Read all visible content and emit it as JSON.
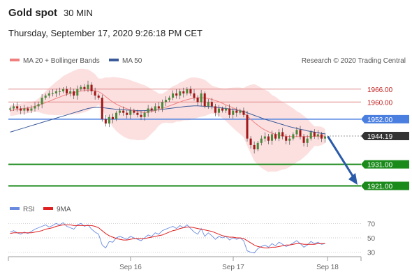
{
  "header": {
    "title": "Gold spot",
    "timeframe": "30 MIN",
    "datetime": "Thursday, September 17, 2020 9:26:18 PM CET",
    "copyright": "Research © 2020 Trading Central"
  },
  "legend": {
    "ma20": "MA 20 + Bollinger Bands",
    "ma50": "MA 50",
    "rsi": "RSI",
    "rsi_ma": "9MA"
  },
  "colors": {
    "band_fill": "#fcdada",
    "ma20": "#f08080",
    "ma50": "#3a5a9a",
    "candle_up": "#4a8a3a",
    "candle_down": "#a01818",
    "resistance": "#e08888",
    "pivot": "#4a7fe0",
    "support": "#1a8a1a",
    "arrow": "#2a5aa8",
    "rsi": "#6a8ae0",
    "rsi_ma": "#e02020"
  },
  "chart_data": [
    {
      "type": "line",
      "title": "Gold spot",
      "x_ticks": [
        "Sep 16",
        "Sep 17",
        "Sep 18"
      ],
      "ylim": [
        1915,
        1975
      ],
      "levels": [
        {
          "label": "1966.00",
          "value": 1966.0,
          "kind": "resistance"
        },
        {
          "label": "1960.00",
          "value": 1960.0,
          "kind": "resistance"
        },
        {
          "label": "1952.00",
          "value": 1952.0,
          "kind": "pivot"
        },
        {
          "label": "1944.19",
          "value": 1944.19,
          "kind": "last"
        },
        {
          "label": "1931.00",
          "value": 1931.0,
          "kind": "support"
        },
        {
          "label": "1921.00",
          "value": 1921.0,
          "kind": "support"
        }
      ],
      "series": [
        {
          "name": "Gold spot",
          "values": [
            1957,
            1958,
            1957,
            1956,
            1957,
            1956,
            1957,
            1958,
            1959,
            1962,
            1963,
            1964,
            1964,
            1965,
            1965,
            1966,
            1964,
            1965,
            1963,
            1966,
            1967,
            1966,
            1968,
            1965,
            1963,
            1962,
            1952,
            1950,
            1953,
            1952,
            1955,
            1956,
            1955,
            1954,
            1956,
            1955,
            1954,
            1953,
            1955,
            1957,
            1956,
            1958,
            1957,
            1960,
            1961,
            1962,
            1964,
            1963,
            1965,
            1964,
            1966,
            1964,
            1962,
            1960,
            1964,
            1958,
            1960,
            1958,
            1955,
            1957,
            1956,
            1957,
            1954,
            1956,
            1955,
            1956,
            1954,
            1943,
            1940,
            1938,
            1941,
            1943,
            1944,
            1942,
            1945,
            1943,
            1946,
            1944,
            1942,
            1943,
            1945,
            1947,
            1944,
            1941,
            1943,
            1946,
            1944,
            1945,
            1943,
            1944
          ]
        },
        {
          "name": "MA 50",
          "values": [
            1946,
            1946.5,
            1947,
            1947.5,
            1948,
            1948.5,
            1949,
            1949.5,
            1950,
            1950.5,
            1951,
            1951.5,
            1952,
            1952.5,
            1953,
            1953.5,
            1954,
            1954.5,
            1955,
            1955.5,
            1956,
            1956.5,
            1957,
            1957.3,
            1957.5,
            1957.6,
            1957.4,
            1957.2,
            1957,
            1956.8,
            1956.6,
            1956.5,
            1956.4,
            1956.3,
            1956.2,
            1956.1,
            1956,
            1956,
            1956,
            1956.1,
            1956.2,
            1956.3,
            1956.5,
            1956.6,
            1956.8,
            1957,
            1957.2,
            1957.4,
            1957.6,
            1957.8,
            1958,
            1958.1,
            1958.2,
            1958.2,
            1958.1,
            1958,
            1957.9,
            1957.8,
            1957.6,
            1957.4,
            1957.2,
            1957,
            1956.8,
            1956.6,
            1956.3,
            1956,
            1955.6,
            1955,
            1954.4,
            1953.8,
            1953.2,
            1952.6,
            1952,
            1951.5,
            1951,
            1950.5,
            1950,
            1949.5,
            1949,
            1948.5,
            1948.1,
            1947.7,
            1947.3,
            1947,
            1946.6,
            1946.3,
            1946,
            1945.7,
            1945.4,
            1945.2
          ]
        },
        {
          "name": "MA 20",
          "values": [
            1956,
            1956.3,
            1956.5,
            1956.8,
            1957,
            1957.3,
            1957.6,
            1958,
            1958.5,
            1959,
            1959.7,
            1960.3,
            1961,
            1961.7,
            1962.3,
            1963,
            1963.5,
            1964,
            1964.4,
            1964.8,
            1965.1,
            1965.3,
            1965.5,
            1965.5,
            1965.3,
            1964.8,
            1963.8,
            1962.5,
            1961.2,
            1960,
            1959,
            1958.2,
            1957.5,
            1956.9,
            1956.4,
            1956,
            1955.6,
            1955.3,
            1955.1,
            1955.3,
            1955.6,
            1956,
            1956.5,
            1957,
            1957.6,
            1958.2,
            1958.8,
            1959.4,
            1960,
            1960.6,
            1961.1,
            1961.5,
            1961.8,
            1962,
            1962,
            1961.9,
            1961.6,
            1961.2,
            1960.7,
            1960.1,
            1959.4,
            1958.7,
            1958,
            1957.3,
            1956.6,
            1955.9,
            1955,
            1953.5,
            1952,
            1950.5,
            1949.2,
            1948,
            1947,
            1946.2,
            1945.5,
            1945,
            1944.6,
            1944.3,
            1944.1,
            1944,
            1943.9,
            1943.9,
            1943.9,
            1943.9,
            1944,
            1944,
            1944.1,
            1944.1,
            1944.2,
            1944.2
          ]
        }
      ]
    },
    {
      "type": "line",
      "title": "RSI",
      "x_ticks": [
        "Sep 16",
        "Sep 17",
        "Sep 18"
      ],
      "y_ticks": [
        "70",
        "50",
        "30"
      ],
      "ylim": [
        20,
        80
      ],
      "series": [
        {
          "name": "RSI",
          "values": [
            58,
            60,
            57,
            55,
            58,
            56,
            59,
            62,
            64,
            66,
            68,
            65,
            67,
            70,
            68,
            71,
            66,
            64,
            62,
            68,
            70,
            66,
            68,
            62,
            58,
            55,
            40,
            36,
            45,
            44,
            50,
            52,
            50,
            48,
            52,
            50,
            48,
            46,
            50,
            54,
            52,
            57,
            55,
            60,
            62,
            64,
            66,
            63,
            67,
            64,
            68,
            63,
            58,
            55,
            63,
            52,
            57,
            53,
            48,
            52,
            50,
            52,
            47,
            50,
            48,
            50,
            46,
            32,
            30,
            29,
            35,
            38,
            40,
            37,
            42,
            39,
            44,
            41,
            38,
            40,
            43,
            46,
            42,
            37,
            40,
            45,
            42,
            44,
            41,
            42
          ]
        },
        {
          "name": "9MA",
          "values": [
            56,
            57,
            57,
            57,
            57,
            57,
            57,
            58,
            59,
            60,
            62,
            63,
            64,
            66,
            67,
            68,
            68,
            68,
            67,
            67,
            67,
            67,
            67,
            67,
            66,
            64,
            60,
            56,
            53,
            51,
            49,
            48,
            47,
            47,
            48,
            49,
            49,
            49,
            49,
            50,
            51,
            52,
            53,
            54,
            56,
            58,
            60,
            61,
            63,
            64,
            65,
            65,
            64,
            63,
            62,
            61,
            60,
            59,
            57,
            55,
            53,
            52,
            51,
            51,
            50,
            50,
            49,
            46,
            43,
            40,
            38,
            37,
            36,
            36,
            37,
            37,
            38,
            39,
            40,
            40,
            41,
            42,
            42,
            41,
            41,
            41,
            41,
            42,
            42,
            42
          ]
        }
      ]
    }
  ]
}
